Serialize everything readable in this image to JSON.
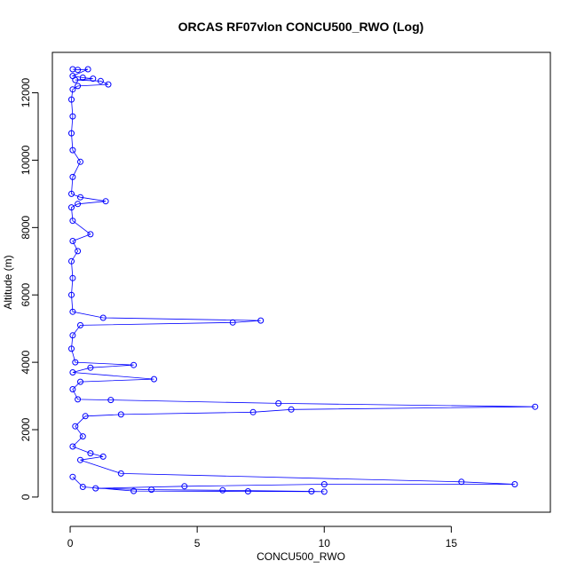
{
  "chart_data": {
    "type": "line",
    "title": "ORCAS RF07vlon CONCU500_RWO (Log)",
    "xlabel": "CONCU500_RWO",
    "ylabel": "Altitude (m)",
    "xlim": [
      -0.7,
      18.9
    ],
    "ylim": [
      -450,
      13200
    ],
    "xticks": [
      0,
      5,
      10,
      15
    ],
    "yticks": [
      0,
      2000,
      4000,
      6000,
      8000,
      10000,
      12000
    ],
    "grid": false,
    "legend": "none",
    "marker": "open-circle",
    "color": "#0000ff",
    "series": [
      {
        "values": [
          {
            "x": 0.1,
            "y": 12700
          },
          {
            "x": 0.3,
            "y": 12680
          },
          {
            "x": 0.7,
            "y": 12700
          },
          {
            "x": 0.1,
            "y": 12500
          },
          {
            "x": 0.5,
            "y": 12450
          },
          {
            "x": 0.9,
            "y": 12420
          },
          {
            "x": 0.2,
            "y": 12380
          },
          {
            "x": 1.2,
            "y": 12350
          },
          {
            "x": 1.5,
            "y": 12250
          },
          {
            "x": 0.3,
            "y": 12200
          },
          {
            "x": 0.1,
            "y": 12100
          },
          {
            "x": 0.05,
            "y": 11800
          },
          {
            "x": 0.1,
            "y": 11300
          },
          {
            "x": 0.05,
            "y": 10800
          },
          {
            "x": 0.1,
            "y": 10300
          },
          {
            "x": 0.4,
            "y": 9950
          },
          {
            "x": 0.1,
            "y": 9500
          },
          {
            "x": 0.05,
            "y": 9000
          },
          {
            "x": 0.4,
            "y": 8900
          },
          {
            "x": 1.4,
            "y": 8780
          },
          {
            "x": 0.3,
            "y": 8700
          },
          {
            "x": 0.05,
            "y": 8600
          },
          {
            "x": 0.1,
            "y": 8200
          },
          {
            "x": 0.8,
            "y": 7800
          },
          {
            "x": 0.1,
            "y": 7600
          },
          {
            "x": 0.3,
            "y": 7300
          },
          {
            "x": 0.05,
            "y": 7000
          },
          {
            "x": 0.1,
            "y": 6500
          },
          {
            "x": 0.05,
            "y": 6000
          },
          {
            "x": 0.1,
            "y": 5500
          },
          {
            "x": 1.3,
            "y": 5320
          },
          {
            "x": 7.5,
            "y": 5240
          },
          {
            "x": 6.4,
            "y": 5180
          },
          {
            "x": 0.4,
            "y": 5100
          },
          {
            "x": 0.1,
            "y": 4800
          },
          {
            "x": 0.05,
            "y": 4400
          },
          {
            "x": 0.2,
            "y": 4000
          },
          {
            "x": 2.5,
            "y": 3920
          },
          {
            "x": 0.8,
            "y": 3840
          },
          {
            "x": 0.1,
            "y": 3700
          },
          {
            "x": 3.3,
            "y": 3500
          },
          {
            "x": 0.4,
            "y": 3420
          },
          {
            "x": 0.1,
            "y": 3200
          },
          {
            "x": 0.3,
            "y": 2900
          },
          {
            "x": 1.6,
            "y": 2880
          },
          {
            "x": 8.2,
            "y": 2780
          },
          {
            "x": 18.3,
            "y": 2680
          },
          {
            "x": 8.7,
            "y": 2600
          },
          {
            "x": 7.2,
            "y": 2520
          },
          {
            "x": 2.0,
            "y": 2450
          },
          {
            "x": 0.6,
            "y": 2400
          },
          {
            "x": 0.2,
            "y": 2100
          },
          {
            "x": 0.5,
            "y": 1800
          },
          {
            "x": 0.1,
            "y": 1500
          },
          {
            "x": 0.8,
            "y": 1300
          },
          {
            "x": 1.3,
            "y": 1200
          },
          {
            "x": 0.4,
            "y": 1100
          },
          {
            "x": 2.0,
            "y": 700
          },
          {
            "x": 15.4,
            "y": 450
          },
          {
            "x": 17.5,
            "y": 380
          },
          {
            "x": 10.0,
            "y": 380
          },
          {
            "x": 4.5,
            "y": 320
          },
          {
            "x": 1.0,
            "y": 260
          },
          {
            "x": 3.2,
            "y": 220
          },
          {
            "x": 6.0,
            "y": 200
          },
          {
            "x": 9.5,
            "y": 170
          },
          {
            "x": 10.0,
            "y": 160
          },
          {
            "x": 7.0,
            "y": 170
          },
          {
            "x": 2.5,
            "y": 180
          },
          {
            "x": 0.5,
            "y": 300
          },
          {
            "x": 0.1,
            "y": 600
          }
        ]
      }
    ]
  }
}
